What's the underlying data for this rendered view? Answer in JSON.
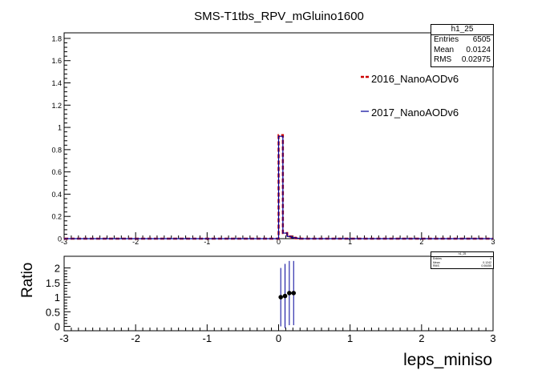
{
  "title": "SMS-T1tbs_RPV_mGluino1600",
  "stats": {
    "name": "h1_25",
    "entries_label": "Entries",
    "entries": "6505",
    "mean_label": "Mean",
    "mean": "0.0124",
    "rms_label": "RMS",
    "rms": "0.02975"
  },
  "ratio_stats": {
    "name": "h1_25",
    "entries_label": "Entries",
    "entries": "4",
    "mean_label": "Mean",
    "mean": "0.1242",
    "rms_label": "RMS",
    "rms": "0.06455"
  },
  "legend": [
    {
      "name": "2016_NanoAODv6",
      "color": "#cc0000",
      "style": "dashed"
    },
    {
      "name": "2017_NanoAODv6",
      "color": "#000099",
      "style": "solid"
    }
  ],
  "chart_data": [
    {
      "type": "line",
      "title": "SMS-T1tbs_RPV_mGluino1600",
      "xlim": [
        -3,
        3
      ],
      "ylim": [
        0,
        1.85
      ],
      "x_ticks": [
        "-3",
        "-2",
        "-1",
        "0",
        "1",
        "2",
        "3"
      ],
      "y_ticks": [
        "0",
        "0.2",
        "0.4",
        "0.6",
        "0.8",
        "1",
        "1.2",
        "1.4",
        "1.6",
        "1.8"
      ],
      "bin_width": 0.06,
      "series": [
        {
          "name": "2016_NanoAODv6",
          "color": "#cc0000",
          "bins": [
            [
              0.0,
              0.93
            ],
            [
              0.06,
              0.05
            ],
            [
              0.12,
              0.02
            ],
            [
              0.18,
              0.008
            ],
            [
              0.24,
              0.004
            ]
          ]
        },
        {
          "name": "2017_NanoAODv6",
          "color": "#000099",
          "bins": [
            [
              0.0,
              0.92
            ],
            [
              0.06,
              0.05
            ],
            [
              0.12,
              0.02
            ],
            [
              0.18,
              0.008
            ],
            [
              0.24,
              0.004
            ]
          ]
        }
      ]
    },
    {
      "type": "scatter",
      "ylabel": "Ratio",
      "xlabel": "leps_miniso",
      "xlim": [
        -3,
        3
      ],
      "ylim": [
        -0.15,
        2.4
      ],
      "x_ticks": [
        "-3",
        "-2",
        "-1",
        "0",
        "1",
        "2",
        "3"
      ],
      "y_ticks": [
        "0",
        "0.5",
        "1",
        "1.5",
        "2"
      ],
      "points": [
        {
          "x": 0.03,
          "y": 1.0,
          "err": 1.0
        },
        {
          "x": 0.09,
          "y": 1.04,
          "err": 1.1
        },
        {
          "x": 0.15,
          "y": 1.14,
          "err": 1.1
        },
        {
          "x": 0.21,
          "y": 1.14,
          "err": 1.1
        }
      ]
    }
  ]
}
